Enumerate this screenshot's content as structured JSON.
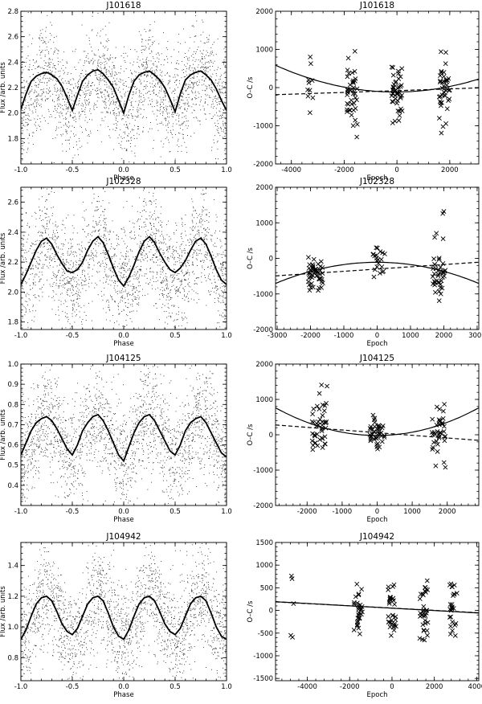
{
  "figure": {
    "flux_label": "Flux /arb. units",
    "phase_label": "Phase",
    "oc_label": "O–C /s",
    "epoch_label": "Epoch"
  },
  "chart_data": [
    {
      "id": "J101618-lc",
      "type": "scatter",
      "title": "J101618",
      "xlabel": "Phase",
      "ylabel": "Flux /arb. units",
      "xlim": [
        -1.0,
        1.0
      ],
      "ylim": [
        1.6,
        2.8
      ],
      "xticks": [
        -1.0,
        -0.5,
        0.0,
        0.5,
        1.0
      ],
      "xtick_labels": [
        "-1.0",
        "-0.5",
        "0.0",
        "0.5",
        "1.0"
      ],
      "yticks": [
        1.8,
        2.0,
        2.2,
        2.4,
        2.6,
        2.8
      ],
      "ytick_labels": [
        "1.8",
        "2.0",
        "2.2",
        "2.4",
        "2.6",
        "2.8"
      ],
      "grid": false,
      "model": {
        "period_phase": 0.5,
        "mean": 2.18,
        "amp_main": 0.15,
        "amp_second": 0.02,
        "peak_phase": -0.25,
        "noise_sd": 0.2,
        "n_points": 2200
      },
      "binned_curve": {
        "x": [
          -1.0,
          -0.95,
          -0.9,
          -0.85,
          -0.8,
          -0.75,
          -0.7,
          -0.65,
          -0.6,
          -0.55,
          -0.5,
          -0.45,
          -0.4,
          -0.35,
          -0.3,
          -0.25,
          -0.2,
          -0.15,
          -0.1,
          -0.05,
          0.0,
          0.05,
          0.1,
          0.15,
          0.2,
          0.25,
          0.3,
          0.35,
          0.4,
          0.45,
          0.5,
          0.55,
          0.6,
          0.65,
          0.7,
          0.75,
          0.8,
          0.85,
          0.9,
          0.95,
          1.0
        ],
        "y": [
          2.03,
          2.15,
          2.25,
          2.29,
          2.31,
          2.32,
          2.3,
          2.27,
          2.21,
          2.12,
          2.02,
          2.14,
          2.25,
          2.3,
          2.33,
          2.34,
          2.31,
          2.26,
          2.2,
          2.1,
          2.0,
          2.14,
          2.25,
          2.3,
          2.32,
          2.33,
          2.3,
          2.26,
          2.2,
          2.11,
          2.01,
          2.15,
          2.26,
          2.3,
          2.32,
          2.33,
          2.3,
          2.26,
          2.19,
          2.1,
          2.02
        ]
      }
    },
    {
      "id": "J101618-oc",
      "type": "scatter",
      "title": "J101618",
      "xlabel": "Epoch",
      "ylabel": "O–C /s",
      "xlim": [
        -4600,
        3100
      ],
      "ylim": [
        -2000,
        2000
      ],
      "xticks": [
        -4000,
        -2000,
        0,
        2000
      ],
      "xtick_labels": [
        "-4000",
        "-2000",
        "0",
        "2000"
      ],
      "yticks": [
        -2000,
        -1000,
        0,
        1000,
        2000
      ],
      "ytick_labels": [
        "-2000",
        "-1000",
        "0",
        "1000",
        "2000"
      ],
      "grid": false,
      "groups": [
        {
          "center": -3300,
          "spread": 120,
          "n": 10,
          "mean": 100,
          "sd": 380
        },
        {
          "center": -1700,
          "spread": 200,
          "n": 42,
          "mean": -120,
          "sd": 420
        },
        {
          "center": 0,
          "spread": 200,
          "n": 45,
          "mean": -60,
          "sd": 420
        },
        {
          "center": 1800,
          "spread": 200,
          "n": 40,
          "mean": -90,
          "sd": 450
        }
      ],
      "fits": [
        {
          "style": "solid",
          "c": [
            -115.0,
            0.0043,
            3.4e-05
          ]
        },
        {
          "style": "dashed",
          "c": [
            -80.0,
            0.023,
            0
          ]
        }
      ]
    },
    {
      "id": "J102328-lc",
      "type": "scatter",
      "title": "J102328",
      "xlabel": "Phase",
      "ylabel": "Flux /arb. units",
      "xlim": [
        -1.0,
        1.0
      ],
      "ylim": [
        1.75,
        2.7
      ],
      "xticks": [
        -1.0,
        -0.5,
        0.0,
        0.5,
        1.0
      ],
      "xtick_labels": [
        "-1.0",
        "-0.5",
        "0.0",
        "0.5",
        "1.0"
      ],
      "yticks": [
        1.8,
        2.0,
        2.2,
        2.4,
        2.6
      ],
      "ytick_labels": [
        "1.8",
        "2.0",
        "2.2",
        "2.4",
        "2.6"
      ],
      "grid": false,
      "model": {
        "period_phase": 0.5,
        "mean": 2.2,
        "amp_main": 0.14,
        "amp_second": 0.03,
        "peak_phase": -0.25,
        "noise_sd": 0.18,
        "n_points": 2200
      },
      "binned_curve": {
        "x": [
          -1.0,
          -0.95,
          -0.9,
          -0.85,
          -0.8,
          -0.75,
          -0.7,
          -0.65,
          -0.6,
          -0.55,
          -0.5,
          -0.45,
          -0.4,
          -0.35,
          -0.3,
          -0.25,
          -0.2,
          -0.15,
          -0.1,
          -0.05,
          0.0,
          0.05,
          0.1,
          0.15,
          0.2,
          0.25,
          0.3,
          0.35,
          0.4,
          0.45,
          0.5,
          0.55,
          0.6,
          0.65,
          0.7,
          0.75,
          0.8,
          0.85,
          0.9,
          0.95,
          1.0
        ],
        "y": [
          2.05,
          2.12,
          2.2,
          2.28,
          2.34,
          2.36,
          2.32,
          2.25,
          2.19,
          2.14,
          2.13,
          2.15,
          2.2,
          2.28,
          2.34,
          2.37,
          2.33,
          2.25,
          2.16,
          2.08,
          2.04,
          2.1,
          2.18,
          2.27,
          2.34,
          2.37,
          2.33,
          2.26,
          2.2,
          2.15,
          2.13,
          2.16,
          2.21,
          2.28,
          2.34,
          2.36,
          2.32,
          2.24,
          2.15,
          2.08,
          2.05
        ]
      }
    },
    {
      "id": "J102328-oc",
      "type": "scatter",
      "title": "J102328",
      "xlabel": "Epoch",
      "ylabel": "O–C /s",
      "xlim": [
        -3050,
        3050
      ],
      "ylim": [
        -2000,
        2000
      ],
      "xticks": [
        -3000,
        -2000,
        -1000,
        0,
        1000,
        2000,
        3000
      ],
      "xtick_labels": [
        "-3000",
        "-2000",
        "-1000",
        "0",
        "1000",
        "2000",
        "3000"
      ],
      "yticks": [
        -2000,
        -1000,
        0,
        1000,
        2000
      ],
      "ytick_labels": [
        "-2000",
        "-1000",
        "0",
        "1000",
        "2000"
      ],
      "grid": false,
      "groups": [
        {
          "center": -1850,
          "spread": 220,
          "n": 48,
          "mean": -380,
          "sd": 250
        },
        {
          "center": 50,
          "spread": 180,
          "n": 22,
          "mean": -120,
          "sd": 220
        },
        {
          "center": 1850,
          "spread": 200,
          "n": 40,
          "mean": -360,
          "sd": 330
        }
      ],
      "outliers": [
        {
          "x": 2000,
          "y": 1320
        },
        {
          "x": 1970,
          "y": 1260
        }
      ],
      "fits": [
        {
          "style": "solid",
          "c": [
            -110.0,
            0.0,
            -6.4e-05
          ]
        },
        {
          "style": "dashed",
          "c": [
            -300.0,
            0.063,
            0
          ]
        }
      ]
    },
    {
      "id": "J104125-lc",
      "type": "scatter",
      "title": "J104125",
      "xlabel": "Phase",
      "ylabel": "Flux /arb. units",
      "xlim": [
        -1.0,
        1.0
      ],
      "ylim": [
        0.3,
        1.0
      ],
      "xticks": [
        -1.0,
        -0.5,
        0.0,
        0.5,
        1.0
      ],
      "xtick_labels": [
        "-1.0",
        "-0.5",
        "0.0",
        "0.5",
        "1.0"
      ],
      "yticks": [
        0.4,
        0.5,
        0.6,
        0.7,
        0.8,
        0.9,
        1.0
      ],
      "ytick_labels": [
        "0.4",
        "0.5",
        "0.6",
        "0.7",
        "0.8",
        "0.9",
        "1.0"
      ],
      "grid": false,
      "model": {
        "period_phase": 0.5,
        "mean": 0.64,
        "amp_main": 0.1,
        "amp_second": 0.0,
        "peak_phase": -0.25,
        "noise_sd": 0.13,
        "n_points": 2200
      },
      "binned_curve": {
        "x": [
          -1.0,
          -0.95,
          -0.9,
          -0.85,
          -0.8,
          -0.75,
          -0.7,
          -0.65,
          -0.6,
          -0.55,
          -0.5,
          -0.45,
          -0.4,
          -0.35,
          -0.3,
          -0.25,
          -0.2,
          -0.15,
          -0.1,
          -0.05,
          0.0,
          0.05,
          0.1,
          0.15,
          0.2,
          0.25,
          0.3,
          0.35,
          0.4,
          0.45,
          0.5,
          0.55,
          0.6,
          0.65,
          0.7,
          0.75,
          0.8,
          0.85,
          0.9,
          0.95,
          1.0
        ],
        "y": [
          0.55,
          0.61,
          0.67,
          0.71,
          0.73,
          0.74,
          0.72,
          0.68,
          0.63,
          0.58,
          0.55,
          0.6,
          0.67,
          0.71,
          0.74,
          0.75,
          0.72,
          0.67,
          0.61,
          0.55,
          0.52,
          0.59,
          0.66,
          0.71,
          0.74,
          0.75,
          0.72,
          0.67,
          0.62,
          0.57,
          0.55,
          0.6,
          0.67,
          0.71,
          0.73,
          0.74,
          0.71,
          0.66,
          0.61,
          0.56,
          0.54
        ]
      }
    },
    {
      "id": "J104125-oc",
      "type": "scatter",
      "title": "J104125",
      "xlabel": "Epoch",
      "ylabel": "O–C /s",
      "xlim": [
        -2900,
        2900
      ],
      "ylim": [
        -2000,
        2000
      ],
      "xticks": [
        -2000,
        -1000,
        0,
        1000,
        2000
      ],
      "xtick_labels": [
        "-2000",
        "-1000",
        "0",
        "1000",
        "2000"
      ],
      "yticks": [
        -2000,
        -1000,
        0,
        1000,
        2000
      ],
      "ytick_labels": [
        "-2000",
        "-1000",
        "0",
        "1000",
        "2000"
      ],
      "grid": false,
      "groups": [
        {
          "center": -1650,
          "spread": 220,
          "n": 45,
          "mean": 120,
          "sd": 420
        },
        {
          "center": 0,
          "spread": 220,
          "n": 42,
          "mean": 20,
          "sd": 250
        },
        {
          "center": 1750,
          "spread": 200,
          "n": 38,
          "mean": 80,
          "sd": 480
        }
      ],
      "fits": [
        {
          "style": "solid",
          "c": [
            -20.0,
            0.0,
            9.3e-05
          ]
        },
        {
          "style": "dashed",
          "c": [
            60.0,
            -0.075,
            0
          ]
        }
      ]
    },
    {
      "id": "J104942-lc",
      "type": "scatter",
      "title": "J104942",
      "xlabel": "Phase",
      "ylabel": "Flux /arb. units",
      "xlim": [
        -1.0,
        1.0
      ],
      "ylim": [
        0.65,
        1.55
      ],
      "xticks": [
        -1.0,
        -0.5,
        0.0,
        0.5,
        1.0
      ],
      "xtick_labels": [
        "-1.0",
        "-0.5",
        "0.0",
        "0.5",
        "1.0"
      ],
      "yticks": [
        0.8,
        1.0,
        1.2,
        1.4
      ],
      "ytick_labels": [
        "0.8",
        "1.0",
        "1.2",
        "1.4"
      ],
      "grid": false,
      "model": {
        "period_phase": 0.5,
        "mean": 1.07,
        "amp_main": 0.13,
        "amp_second": 0.02,
        "peak_phase": -0.25,
        "noise_sd": 0.17,
        "n_points": 2200
      },
      "binned_curve": {
        "x": [
          -1.0,
          -0.95,
          -0.9,
          -0.85,
          -0.8,
          -0.75,
          -0.7,
          -0.65,
          -0.6,
          -0.55,
          -0.5,
          -0.45,
          -0.4,
          -0.35,
          -0.3,
          -0.25,
          -0.2,
          -0.15,
          -0.1,
          -0.05,
          0.0,
          0.05,
          0.1,
          0.15,
          0.2,
          0.25,
          0.3,
          0.35,
          0.4,
          0.45,
          0.5,
          0.55,
          0.6,
          0.65,
          0.7,
          0.75,
          0.8,
          0.85,
          0.9,
          0.95,
          1.0
        ],
        "y": [
          0.92,
          0.98,
          1.07,
          1.15,
          1.19,
          1.2,
          1.17,
          1.1,
          1.02,
          0.97,
          0.95,
          0.99,
          1.07,
          1.15,
          1.19,
          1.2,
          1.17,
          1.09,
          1.0,
          0.94,
          0.92,
          0.98,
          1.07,
          1.15,
          1.19,
          1.2,
          1.17,
          1.1,
          1.02,
          0.97,
          0.95,
          0.99,
          1.07,
          1.15,
          1.19,
          1.2,
          1.17,
          1.09,
          1.0,
          0.94,
          0.92
        ]
      }
    },
    {
      "id": "J104942-oc",
      "type": "scatter",
      "title": "J104942",
      "xlabel": "Epoch",
      "ylabel": "O–C /s",
      "xlim": [
        -5500,
        4100
      ],
      "ylim": [
        -1550,
        1500
      ],
      "xticks": [
        -4000,
        -2000,
        0,
        2000,
        4000
      ],
      "xtick_labels": [
        "-4000",
        "-2000",
        "0",
        "2000",
        "4000"
      ],
      "yticks": [
        -1500,
        -1000,
        -500,
        0,
        500,
        1000,
        1500
      ],
      "ytick_labels": [
        "-1500",
        "-1000",
        "-500",
        "0",
        "500",
        "1000",
        "1500"
      ],
      "grid": false,
      "groups": [
        {
          "center": -1600,
          "spread": 200,
          "n": 30,
          "mean": 100,
          "sd": 330
        },
        {
          "center": 0,
          "spread": 200,
          "n": 32,
          "mean": 30,
          "sd": 300
        },
        {
          "center": 1500,
          "spread": 200,
          "n": 36,
          "mean": 0,
          "sd": 330
        },
        {
          "center": 2900,
          "spread": 180,
          "n": 26,
          "mean": 0,
          "sd": 300
        }
      ],
      "outliers": [
        {
          "x": -4750,
          "y": 760
        },
        {
          "x": -4720,
          "y": 700
        },
        {
          "x": -4780,
          "y": -550
        },
        {
          "x": -4700,
          "y": -590
        },
        {
          "x": -4650,
          "y": 150
        }
      ],
      "fits": [
        {
          "style": "solid",
          "c": [
            50.0,
            -0.026,
            0
          ]
        },
        {
          "style": "dashed",
          "c": [
            52.0,
            -0.025,
            0
          ]
        }
      ]
    }
  ]
}
